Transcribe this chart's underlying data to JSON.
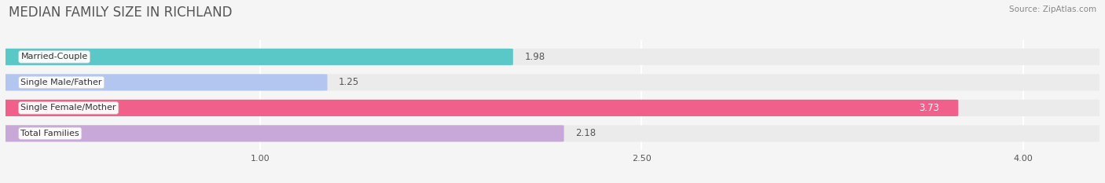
{
  "title": "MEDIAN FAMILY SIZE IN RICHLAND",
  "source": "Source: ZipAtlas.com",
  "categories": [
    "Married-Couple",
    "Single Male/Father",
    "Single Female/Mother",
    "Total Families"
  ],
  "values": [
    1.98,
    1.25,
    3.73,
    2.18
  ],
  "bar_colors": [
    "#5bc8c8",
    "#b3c6ef",
    "#f0608a",
    "#c8a8d8"
  ],
  "bar_bg_color": "#ebebeb",
  "xmin": 0.0,
  "xmax": 4.3,
  "xlim_display": [
    0.0,
    4.3
  ],
  "xticks": [
    1.0,
    2.5,
    4.0
  ],
  "xtick_labels": [
    "1.00",
    "2.50",
    "4.00"
  ],
  "title_fontsize": 12,
  "label_fontsize": 8.0,
  "value_fontsize": 8.5,
  "background_color": "#f5f5f5",
  "grid_color": "#ffffff",
  "bar_label_color": "#333333",
  "value_color_inside": "#ffffff",
  "value_color_outside": "#555555",
  "bar_height": 0.62,
  "bar_gap": 1.0
}
